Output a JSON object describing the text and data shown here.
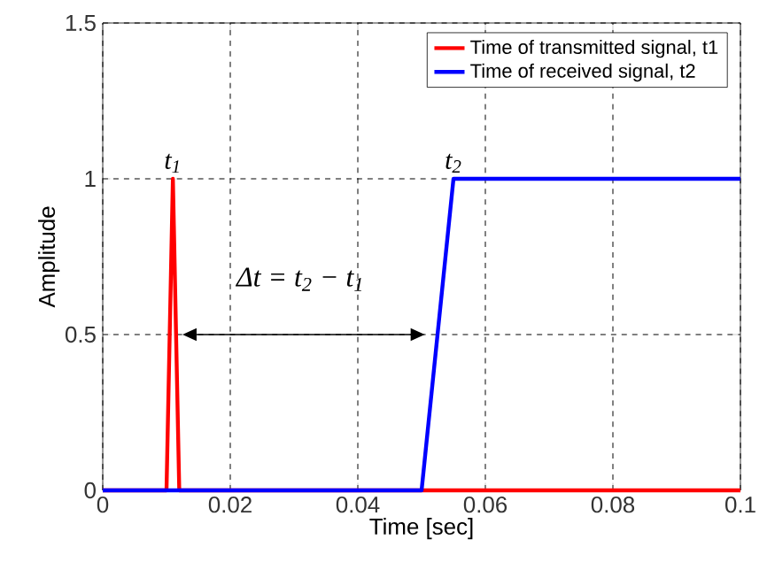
{
  "chart_data": {
    "type": "line",
    "xlabel": "Time [sec]",
    "ylabel": "Amplitude",
    "xlim": [
      0,
      0.1
    ],
    "ylim": [
      0,
      1.5
    ],
    "xticks": [
      0,
      0.02,
      0.04,
      0.06,
      0.08,
      0.1
    ],
    "yticks": [
      0,
      0.5,
      1,
      1.5
    ],
    "grid": true,
    "legend": "top right",
    "line_style": "solid",
    "marker": "none",
    "series": [
      {
        "name": "Time of transmitted signal, t1",
        "color": "#ff0000",
        "x": [
          0,
          0.01,
          0.011,
          0.012,
          0.1
        ],
        "values": [
          0,
          0,
          1,
          0,
          0
        ]
      },
      {
        "name": "Time of received signal, t2",
        "color": "#0000ff",
        "x": [
          0,
          0.05,
          0.055,
          0.1
        ],
        "values": [
          0,
          0,
          1,
          1
        ]
      }
    ],
    "annotations": [
      {
        "text": "t$_{1}$",
        "x": 0.011,
        "y": 1
      },
      {
        "text": "t$_{2}$",
        "x": 0.055,
        "y": 1
      },
      "Δt = t$_{2}$ − t$_{1}$"
    ]
  }
}
